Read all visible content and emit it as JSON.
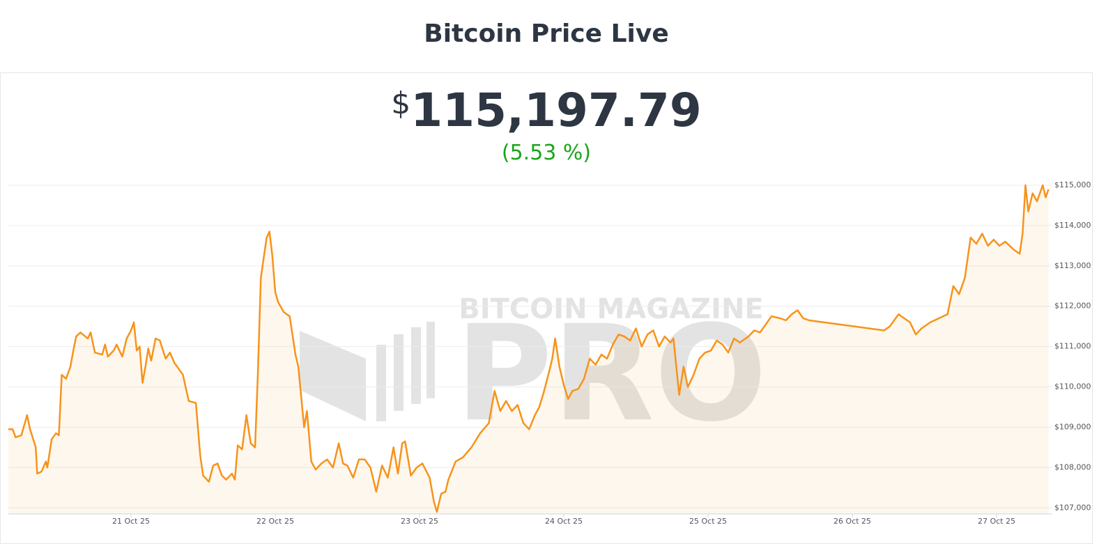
{
  "header": {
    "title": "Bitcoin Price Live",
    "currency": "$",
    "price": "115,197.79",
    "change": "(5.53 %)"
  },
  "watermark": {
    "top": "BITCOIN MAGAZINE",
    "big": "PRO"
  },
  "chart_data": {
    "type": "line",
    "color": "#f7931a",
    "area": true,
    "grid": true,
    "xlim": [
      20.15,
      27.386
    ],
    "ylim": [
      106850,
      115250
    ],
    "xticks": [
      {
        "value": 21,
        "label": "21 Oct 25"
      },
      {
        "value": 22,
        "label": "22 Oct 25"
      },
      {
        "value": 23,
        "label": "23 Oct 25"
      },
      {
        "value": 24,
        "label": "24 Oct 25"
      },
      {
        "value": 25,
        "label": "25 Oct 25"
      },
      {
        "value": 26,
        "label": "26 Oct 25"
      },
      {
        "value": 27,
        "label": "27 Oct 25"
      }
    ],
    "yticks": [
      {
        "value": 107000,
        "label": "$107,000"
      },
      {
        "value": 108000,
        "label": "$108,000"
      },
      {
        "value": 109000,
        "label": "$109,000"
      },
      {
        "value": 110000,
        "label": "$110,000"
      },
      {
        "value": 111000,
        "label": "$111,000"
      },
      {
        "value": 112000,
        "label": "$112,000"
      },
      {
        "value": 113000,
        "label": "$113,000"
      },
      {
        "value": 114000,
        "label": "$114,000"
      },
      {
        "value": 115000,
        "label": "$115,000"
      }
    ],
    "x": [
      20.15,
      20.18,
      20.2,
      20.24,
      20.28,
      20.3,
      20.34,
      20.35,
      20.38,
      20.41,
      20.42,
      20.45,
      20.48,
      20.5,
      20.52,
      20.55,
      20.58,
      20.6,
      20.62,
      20.65,
      20.7,
      20.72,
      20.75,
      20.8,
      20.82,
      20.84,
      20.88,
      20.9,
      20.94,
      20.97,
      21.0,
      21.02,
      21.04,
      21.06,
      21.08,
      21.1,
      21.12,
      21.14,
      21.17,
      21.2,
      21.24,
      21.27,
      21.3,
      21.36,
      21.4,
      21.45,
      21.48,
      21.5,
      21.54,
      21.57,
      21.6,
      21.63,
      21.66,
      21.7,
      21.72,
      21.74,
      21.77,
      21.8,
      21.83,
      21.86,
      21.88,
      21.9,
      21.92,
      21.94,
      21.96,
      21.98,
      22.0,
      22.02,
      22.06,
      22.1,
      22.14,
      22.16,
      22.2,
      22.22,
      22.25,
      22.28,
      22.32,
      22.36,
      22.4,
      22.44,
      22.47,
      22.5,
      22.54,
      22.58,
      22.62,
      22.66,
      22.7,
      22.74,
      22.78,
      22.82,
      22.85,
      22.88,
      22.9,
      22.94,
      22.98,
      23.02,
      23.07,
      23.1,
      23.12,
      23.15,
      23.18,
      23.2,
      23.25,
      23.3,
      23.36,
      23.42,
      23.48,
      23.52,
      23.56,
      23.6,
      23.64,
      23.68,
      23.72,
      23.76,
      23.8,
      23.83,
      23.86,
      23.9,
      23.92,
      23.94,
      23.97,
      24.0,
      24.03,
      24.06,
      24.1,
      24.14,
      24.18,
      24.22,
      24.26,
      24.3,
      24.34,
      24.38,
      24.42,
      24.46,
      24.5,
      24.54,
      24.58,
      24.62,
      24.66,
      24.7,
      24.74,
      24.76,
      24.8,
      24.83,
      24.86,
      24.9,
      24.94,
      24.98,
      25.02,
      25.06,
      25.1,
      25.14,
      25.18,
      25.22,
      25.28,
      25.32,
      25.36,
      25.4,
      25.44,
      25.5,
      25.54,
      25.58,
      25.62,
      25.66,
      25.7,
      26.22,
      26.26,
      26.32,
      26.36,
      26.4,
      26.44,
      26.48,
      26.54,
      26.6,
      26.66,
      26.7,
      26.74,
      26.78,
      26.82,
      26.86,
      26.9,
      26.94,
      26.98,
      27.02,
      27.06,
      27.12,
      27.16,
      27.18,
      27.2,
      27.22,
      27.25,
      27.28,
      27.32,
      27.34,
      27.36
    ],
    "values": [
      108950,
      108950,
      108750,
      108800,
      109300,
      108950,
      108500,
      107850,
      107900,
      108150,
      108000,
      108700,
      108850,
      108800,
      110300,
      110200,
      110500,
      110900,
      111250,
      111350,
      111200,
      111350,
      110850,
      110800,
      111050,
      110750,
      110900,
      111050,
      110750,
      111200,
      111400,
      111600,
      110900,
      111000,
      110100,
      110500,
      110950,
      110650,
      111200,
      111150,
      110700,
      110850,
      110600,
      110300,
      109650,
      109600,
      108300,
      107800,
      107650,
      108050,
      108100,
      107800,
      107700,
      107850,
      107700,
      108550,
      108450,
      109300,
      108600,
      108500,
      110350,
      112700,
      113200,
      113700,
      113850,
      113250,
      112350,
      112100,
      111850,
      111750,
      110800,
      110500,
      109000,
      109400,
      108150,
      107950,
      108100,
      108200,
      108000,
      108600,
      108100,
      108050,
      107750,
      108200,
      108200,
      108000,
      107400,
      108050,
      107750,
      108500,
      107850,
      108600,
      108650,
      107800,
      108000,
      108100,
      107750,
      107150,
      106900,
      107350,
      107400,
      107700,
      108150,
      108250,
      108500,
      108850,
      109100,
      109900,
      109400,
      109650,
      109400,
      109550,
      109100,
      108950,
      109300,
      109500,
      109850,
      110400,
      110700,
      111200,
      110500,
      110050,
      109700,
      109900,
      109950,
      110200,
      110700,
      110550,
      110800,
      110700,
      111050,
      111300,
      111250,
      111150,
      111450,
      111000,
      111300,
      111400,
      111000,
      111250,
      111100,
      111200,
      109800,
      110500,
      110000,
      110300,
      110700,
      110850,
      110900,
      111150,
      111050,
      110850,
      111200,
      111100,
      111250,
      111400,
      111350,
      111550,
      111750,
      111700,
      111650,
      111800,
      111900,
      111700,
      111650,
      111400,
      111500,
      111800,
      111700,
      111600,
      111300,
      111450,
      111600,
      111700,
      111800,
      112500,
      112300,
      112700,
      113700,
      113550,
      113800,
      113500,
      113650,
      113500,
      113600,
      113400,
      113300,
      113800,
      115000,
      114350,
      114800,
      114600,
      115000,
      114700,
      114900
    ]
  }
}
